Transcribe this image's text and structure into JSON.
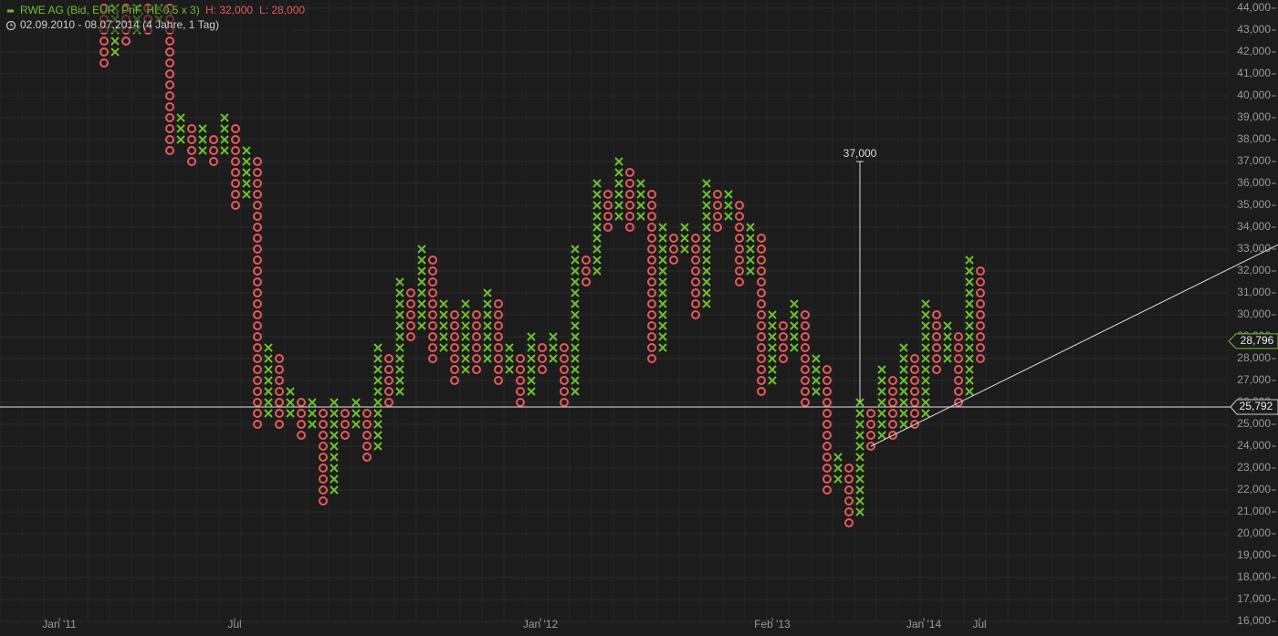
{
  "chart_data": {
    "type": "pnf",
    "title": "RWE AG (Bid, EUR, PnF, HL 0,5 x 3)",
    "high_label": "H: 32,000",
    "low_label": "L: 28,000",
    "subtitle": "02.09.2010 - 08.07.2014 (4 Jahre, 1 Tag)",
    "box_size": 500,
    "x_colors": "#6cc02f",
    "o_colors": "#e85a5a",
    "categories": [
      "Jan '11",
      "Jul",
      "Jan '12",
      "Feb '13",
      "Jan '14",
      "Jul"
    ],
    "columns": [
      {
        "kind": "O",
        "high": 44000,
        "low": 41500
      },
      {
        "kind": "X",
        "high": 44000,
        "low": 42000
      },
      {
        "kind": "O",
        "high": 44000,
        "low": 42500
      },
      {
        "kind": "X",
        "high": 44000,
        "low": 43000
      },
      {
        "kind": "O",
        "high": 44000,
        "low": 43000
      },
      {
        "kind": "X",
        "high": 44000,
        "low": 43500
      },
      {
        "kind": "O",
        "high": 44000,
        "low": 37500
      },
      {
        "kind": "X",
        "high": 39000,
        "low": 38000
      },
      {
        "kind": "O",
        "high": 38500,
        "low": 37000
      },
      {
        "kind": "X",
        "high": 38500,
        "low": 37500
      },
      {
        "kind": "O",
        "high": 38000,
        "low": 37000
      },
      {
        "kind": "X",
        "high": 39000,
        "low": 37500
      },
      {
        "kind": "O",
        "high": 38500,
        "low": 35000
      },
      {
        "kind": "X",
        "high": 37500,
        "low": 35500
      },
      {
        "kind": "O",
        "high": 37000,
        "low": 25000
      },
      {
        "kind": "X",
        "high": 28500,
        "low": 25500
      },
      {
        "kind": "O",
        "high": 28000,
        "low": 25000
      },
      {
        "kind": "X",
        "high": 26500,
        "low": 25500
      },
      {
        "kind": "O",
        "high": 26000,
        "low": 24500
      },
      {
        "kind": "X",
        "high": 26000,
        "low": 25000
      },
      {
        "kind": "O",
        "high": 25500,
        "low": 21500
      },
      {
        "kind": "X",
        "high": 26000,
        "low": 22000
      },
      {
        "kind": "O",
        "high": 25500,
        "low": 24500
      },
      {
        "kind": "X",
        "high": 26000,
        "low": 25000
      },
      {
        "kind": "O",
        "high": 25500,
        "low": 23500
      },
      {
        "kind": "X",
        "high": 28500,
        "low": 24000
      },
      {
        "kind": "O",
        "high": 28000,
        "low": 26000
      },
      {
        "kind": "X",
        "high": 31500,
        "low": 26500
      },
      {
        "kind": "O",
        "high": 31000,
        "low": 29000
      },
      {
        "kind": "X",
        "high": 33000,
        "low": 29500
      },
      {
        "kind": "O",
        "high": 32500,
        "low": 28000
      },
      {
        "kind": "X",
        "high": 30500,
        "low": 28500
      },
      {
        "kind": "O",
        "high": 30000,
        "low": 27000
      },
      {
        "kind": "X",
        "high": 30500,
        "low": 27500
      },
      {
        "kind": "O",
        "high": 30000,
        "low": 27500
      },
      {
        "kind": "X",
        "high": 31000,
        "low": 28000
      },
      {
        "kind": "O",
        "high": 30500,
        "low": 27000
      },
      {
        "kind": "X",
        "high": 28500,
        "low": 27500
      },
      {
        "kind": "O",
        "high": 28000,
        "low": 26000
      },
      {
        "kind": "X",
        "high": 29000,
        "low": 26500
      },
      {
        "kind": "O",
        "high": 28500,
        "low": 27500
      },
      {
        "kind": "X",
        "high": 29000,
        "low": 28000
      },
      {
        "kind": "O",
        "high": 28500,
        "low": 26000
      },
      {
        "kind": "X",
        "high": 33000,
        "low": 26500
      },
      {
        "kind": "O",
        "high": 32500,
        "low": 31500
      },
      {
        "kind": "X",
        "high": 36000,
        "low": 32000
      },
      {
        "kind": "O",
        "high": 35500,
        "low": 34000
      },
      {
        "kind": "X",
        "high": 37000,
        "low": 34500
      },
      {
        "kind": "O",
        "high": 36500,
        "low": 34000
      },
      {
        "kind": "X",
        "high": 36000,
        "low": 34500
      },
      {
        "kind": "O",
        "high": 35500,
        "low": 28000
      },
      {
        "kind": "X",
        "high": 34000,
        "low": 28500
      },
      {
        "kind": "O",
        "high": 33500,
        "low": 32500
      },
      {
        "kind": "X",
        "high": 34000,
        "low": 33000
      },
      {
        "kind": "O",
        "high": 33500,
        "low": 30000
      },
      {
        "kind": "X",
        "high": 36000,
        "low": 30500
      },
      {
        "kind": "O",
        "high": 35500,
        "low": 34000
      },
      {
        "kind": "X",
        "high": 35500,
        "low": 34500
      },
      {
        "kind": "O",
        "high": 35000,
        "low": 31500
      },
      {
        "kind": "X",
        "high": 34000,
        "low": 32000
      },
      {
        "kind": "O",
        "high": 33500,
        "low": 26500
      },
      {
        "kind": "X",
        "high": 30000,
        "low": 27000
      },
      {
        "kind": "O",
        "high": 29500,
        "low": 28000
      },
      {
        "kind": "X",
        "high": 30500,
        "low": 28500
      },
      {
        "kind": "O",
        "high": 30000,
        "low": 26000
      },
      {
        "kind": "X",
        "high": 28000,
        "low": 26500
      },
      {
        "kind": "O",
        "high": 27500,
        "low": 22000
      },
      {
        "kind": "X",
        "high": 23500,
        "low": 22500
      },
      {
        "kind": "O",
        "high": 23000,
        "low": 20500
      },
      {
        "kind": "X",
        "high": 26000,
        "low": 21000
      },
      {
        "kind": "O",
        "high": 25500,
        "low": 24000
      },
      {
        "kind": "X",
        "high": 27500,
        "low": 24500
      },
      {
        "kind": "O",
        "high": 27000,
        "low": 24500
      },
      {
        "kind": "X",
        "high": 28500,
        "low": 25000
      },
      {
        "kind": "O",
        "high": 28000,
        "low": 25000
      },
      {
        "kind": "X",
        "high": 30500,
        "low": 25500
      },
      {
        "kind": "O",
        "high": 30000,
        "low": 27500
      },
      {
        "kind": "X",
        "high": 29500,
        "low": 28000
      },
      {
        "kind": "O",
        "high": 29000,
        "low": 26000
      },
      {
        "kind": "X",
        "high": 32500,
        "low": 26500
      },
      {
        "kind": "O",
        "high": 32000,
        "low": 28000
      }
    ],
    "target": {
      "value": 37000,
      "label": "37,000",
      "base": 26000
    },
    "trendline": {
      "start": 24000,
      "end": 33200
    },
    "last_price": {
      "value": 28796,
      "label": "28,796"
    },
    "reference_line": {
      "value": 25792,
      "label": "25,792"
    },
    "ylim": [
      16000,
      44000
    ],
    "yticks": [
      {
        "value": 16000,
        "label": "16,000"
      },
      {
        "value": 17000,
        "label": "17,000"
      },
      {
        "value": 18000,
        "label": "18,000"
      },
      {
        "value": 19000,
        "label": "19,000"
      },
      {
        "value": 20000,
        "label": "20,000"
      },
      {
        "value": 21000,
        "label": "21,000"
      },
      {
        "value": 22000,
        "label": "22,000"
      },
      {
        "value": 23000,
        "label": "23,000"
      },
      {
        "value": 24000,
        "label": "24,000"
      },
      {
        "value": 25000,
        "label": "25,000"
      },
      {
        "value": 26000,
        "label": "26,000"
      },
      {
        "value": 27000,
        "label": "27,000"
      },
      {
        "value": 28000,
        "label": "28,000"
      },
      {
        "value": 29000,
        "label": "29,000"
      },
      {
        "value": 30000,
        "label": "30,000"
      },
      {
        "value": 31000,
        "label": "31,000"
      },
      {
        "value": 32000,
        "label": "32,000"
      },
      {
        "value": 33000,
        "label": "33,000"
      },
      {
        "value": 34000,
        "label": "34,000"
      },
      {
        "value": 35000,
        "label": "35,000"
      },
      {
        "value": 36000,
        "label": "36,000"
      },
      {
        "value": 37000,
        "label": "37,000"
      },
      {
        "value": 38000,
        "label": "38,000"
      },
      {
        "value": 39000,
        "label": "39,000"
      },
      {
        "value": 40000,
        "label": "40,000"
      },
      {
        "value": 41000,
        "label": "41,000"
      },
      {
        "value": 42000,
        "label": "42,000"
      },
      {
        "value": 43000,
        "label": "43,000"
      },
      {
        "value": 44000,
        "label": "44,000"
      }
    ],
    "grid": true
  }
}
